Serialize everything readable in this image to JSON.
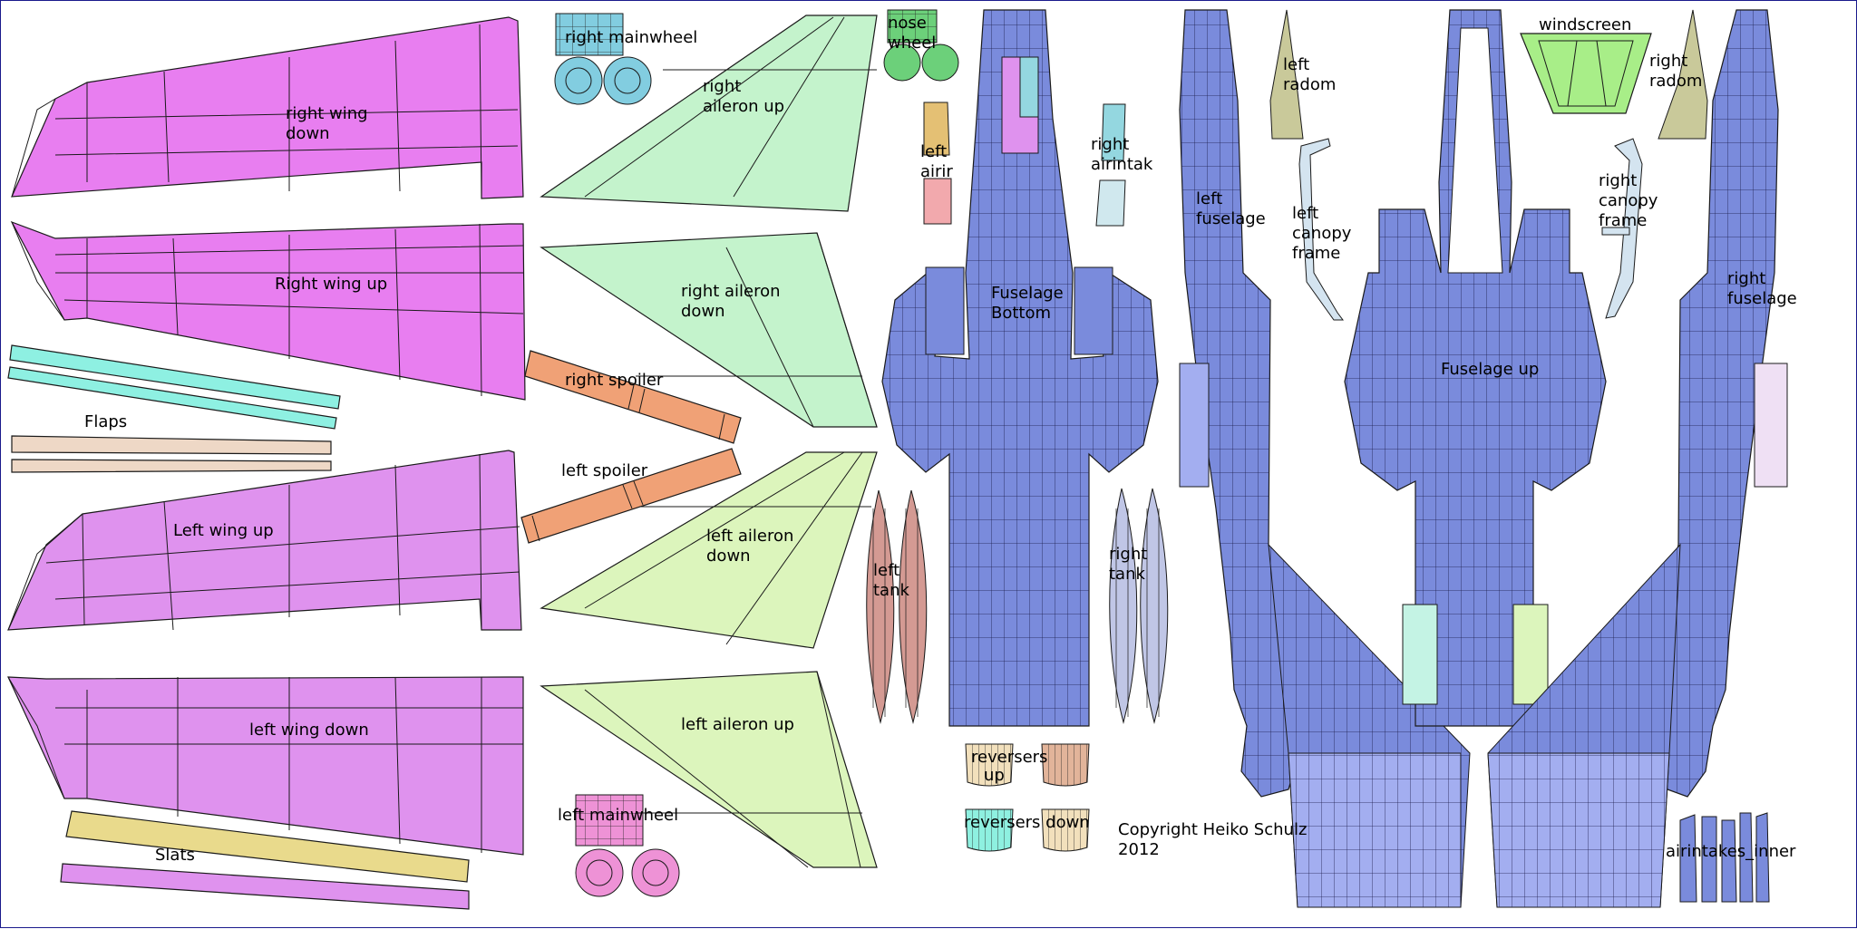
{
  "labels": {
    "right_mainwheel": "right mainwheel",
    "nose_wheel_1": "nose",
    "nose_wheel_2": "wheel",
    "right_aileron_up_1": "right",
    "right_aileron_up_2": "aileron up",
    "right_wing_down_1": "right wing",
    "right_wing_down_2": "down",
    "right_wing_up": "Right wing up",
    "right_aileron_down_1": "right aileron",
    "right_aileron_down_2": "down",
    "right_spoiler": "right spoiler",
    "left_spoiler": "left spoiler",
    "flaps": "Flaps",
    "left_wing_up": "Left wing up",
    "left_aileron_down_1": "left aileron",
    "left_aileron_down_2": "down",
    "left_wing_down": "left wing down",
    "left_aileron_up": "left aileron up",
    "left_mainwheel": "left mainwheel",
    "slats": "Slats",
    "left_airintake_1": "left",
    "left_airintake_2": "airir",
    "right_airintake_1": "right",
    "right_airintake_2": "airintak",
    "fuselage_bottom_1": "Fuselage",
    "fuselage_bottom_2": "Bottom",
    "left_tank_1": "left",
    "left_tank_2": "tank",
    "right_tank_1": "right",
    "right_tank_2": "tank",
    "reversers_up_1": "reversers",
    "reversers_up_2": "up",
    "reversers_down": "reversers down",
    "copyright_1": "Copyright Heiko Schulz",
    "copyright_2": "2012",
    "left_fuselage_1": "left",
    "left_fuselage_2": "fuselage",
    "left_radom_1": "left",
    "left_radom_2": "radom",
    "left_canopy_1": "left",
    "left_canopy_2": "canopy",
    "left_canopy_3": "frame",
    "windscreen": "windscreen",
    "right_radom_1": "right",
    "right_radom_2": "radom",
    "right_canopy_1": "right",
    "right_canopy_2": "canopy",
    "right_canopy_3": "frame",
    "right_fuselage_1": "right",
    "right_fuselage_2": "fuselage",
    "fuselage_up": "Fuselage up",
    "airintakes_inner": "airintakes_inner"
  },
  "colors": {
    "wing_right": "#e87ef0",
    "wing_left": "#df92ee",
    "aileron_right": "#c4f3cc",
    "aileron_left": "#dcf5bc",
    "spoiler": "#f0a176",
    "flaps_cyan": "#8ef0e2",
    "flaps_tan": "#eed8c6",
    "slats_yellow": "#e9da8c",
    "slats_pink": "#df92ee",
    "wheel_blue": "#82cde0",
    "wheel_green": "#6cd07a",
    "wheel_pink": "#ee92d6",
    "fuselage": "#7a8bdc",
    "fuselage_light": "#a3aef0",
    "tank_left": "#d49a93",
    "tank_right": "#c0c6e6",
    "windscreen": "#a8ee88",
    "radom": "#c9c99a",
    "canopy": "#d4e4f0",
    "intake_left": "#e4c074",
    "intake_pink": "#f2a9ad",
    "intake_cyan": "#94d7e0",
    "reverser_tan": "#f2e0bc",
    "reverser_brown": "#e2b49a",
    "reverser_cyan": "#8ef0e0",
    "outline": "#1a1a1a"
  }
}
